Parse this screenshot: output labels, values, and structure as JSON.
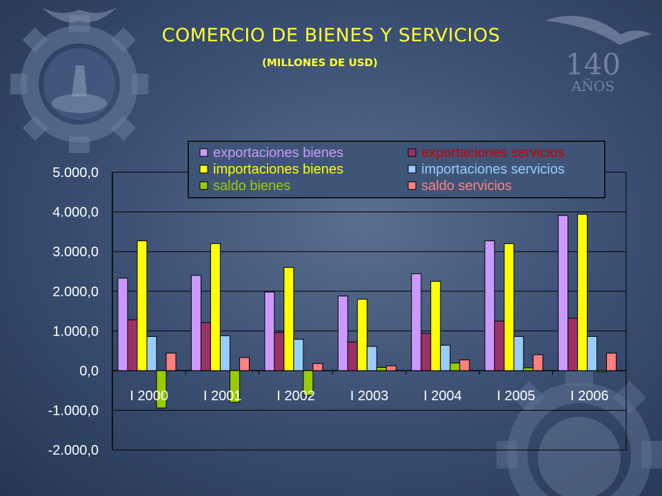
{
  "logo_text": {
    "years": "140",
    "word": "AÑOS"
  },
  "chart_data": {
    "type": "bar",
    "title": "COMERCIO DE BIENES Y SERVICIOS",
    "subtitle": "(MILLONES DE USD)",
    "categories": [
      "2000",
      "2001",
      "2002",
      "2003",
      "2004",
      "2005",
      "2006"
    ],
    "category_prefix": "I",
    "ylim": [
      -2000,
      5000
    ],
    "yticks": [
      "5.000,0",
      "4.000,0",
      "3.000,0",
      "2.000,0",
      "1.000,0",
      "0,0",
      "-1.000,0",
      "-2.000,0"
    ],
    "ytick_values": [
      5000,
      4000,
      3000,
      2000,
      1000,
      0,
      -1000,
      -2000
    ],
    "grid": true,
    "legend_position": "top",
    "series": [
      {
        "name": "exportaciones bienes",
        "color": "#cc99ff",
        "text_color": "#cc99ff",
        "values": [
          2330,
          2400,
          1980,
          1880,
          2440,
          3270,
          3910
        ]
      },
      {
        "name": "exportaciones servicios",
        "color": "#993366",
        "text_color": "#cc0000",
        "values": [
          1280,
          1210,
          960,
          720,
          940,
          1250,
          1320
        ]
      },
      {
        "name": "importaciones bienes",
        "color": "#ffff00",
        "text_color": "#ffff00",
        "values": [
          3270,
          3200,
          2600,
          1800,
          2250,
          3200,
          3940
        ]
      },
      {
        "name": "importaciones servicios",
        "color": "#99ccff",
        "text_color": "#99ccff",
        "values": [
          860,
          880,
          790,
          610,
          640,
          860,
          860
        ]
      },
      {
        "name": "saldo bienes",
        "color": "#99cc00",
        "text_color": "#99cc00",
        "values": [
          -940,
          -800,
          -620,
          80,
          190,
          70,
          -30
        ]
      },
      {
        "name": "saldo servicios",
        "color": "#ff8080",
        "text_color": "#ff8080",
        "values": [
          440,
          330,
          180,
          120,
          270,
          400,
          440
        ]
      }
    ]
  }
}
